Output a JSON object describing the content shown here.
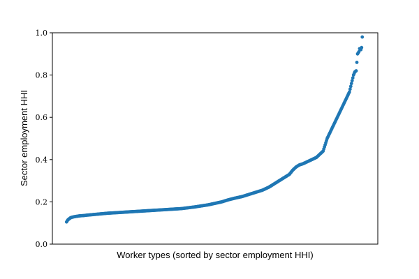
{
  "chart_data": {
    "type": "scatter",
    "title": "",
    "xlabel": "Worker types (sorted by sector employment HHI)",
    "ylabel": "Sector employment HHI",
    "ylim": [
      0.0,
      1.0
    ],
    "xlim": [
      -21,
      461
    ],
    "yticks": [
      "0.0",
      "0.2",
      "0.4",
      "0.6",
      "0.8",
      "1.0"
    ],
    "x_ticks_shown": false,
    "grid": false,
    "legend": "none",
    "color": "#1f77b4",
    "x": [
      0,
      2,
      4,
      6,
      9,
      12,
      16,
      20,
      25,
      30,
      40,
      50,
      60,
      70,
      80,
      90,
      100,
      110,
      120,
      130,
      140,
      150,
      160,
      170,
      180,
      190,
      200,
      210,
      220,
      230,
      240,
      250,
      260,
      270,
      280,
      290,
      300,
      310,
      320,
      330,
      335,
      340,
      345,
      350,
      360,
      370,
      375,
      380,
      383,
      386,
      389,
      392,
      395,
      398,
      401,
      404,
      407,
      410,
      413,
      416,
      419,
      422,
      425,
      427,
      429,
      431,
      433,
      434,
      436,
      437,
      438
    ],
    "y": [
      0.105,
      0.115,
      0.12,
      0.125,
      0.128,
      0.13,
      0.132,
      0.134,
      0.135,
      0.137,
      0.14,
      0.143,
      0.146,
      0.148,
      0.15,
      0.152,
      0.154,
      0.156,
      0.158,
      0.16,
      0.162,
      0.164,
      0.166,
      0.168,
      0.172,
      0.176,
      0.181,
      0.186,
      0.193,
      0.2,
      0.21,
      0.218,
      0.225,
      0.235,
      0.245,
      0.255,
      0.27,
      0.29,
      0.31,
      0.33,
      0.35,
      0.365,
      0.375,
      0.38,
      0.395,
      0.41,
      0.425,
      0.44,
      0.47,
      0.5,
      0.52,
      0.54,
      0.56,
      0.58,
      0.6,
      0.62,
      0.64,
      0.66,
      0.68,
      0.7,
      0.72,
      0.76,
      0.8,
      0.815,
      0.82,
      0.9,
      0.91,
      0.925,
      0.92,
      0.93,
      0.98
    ]
  }
}
